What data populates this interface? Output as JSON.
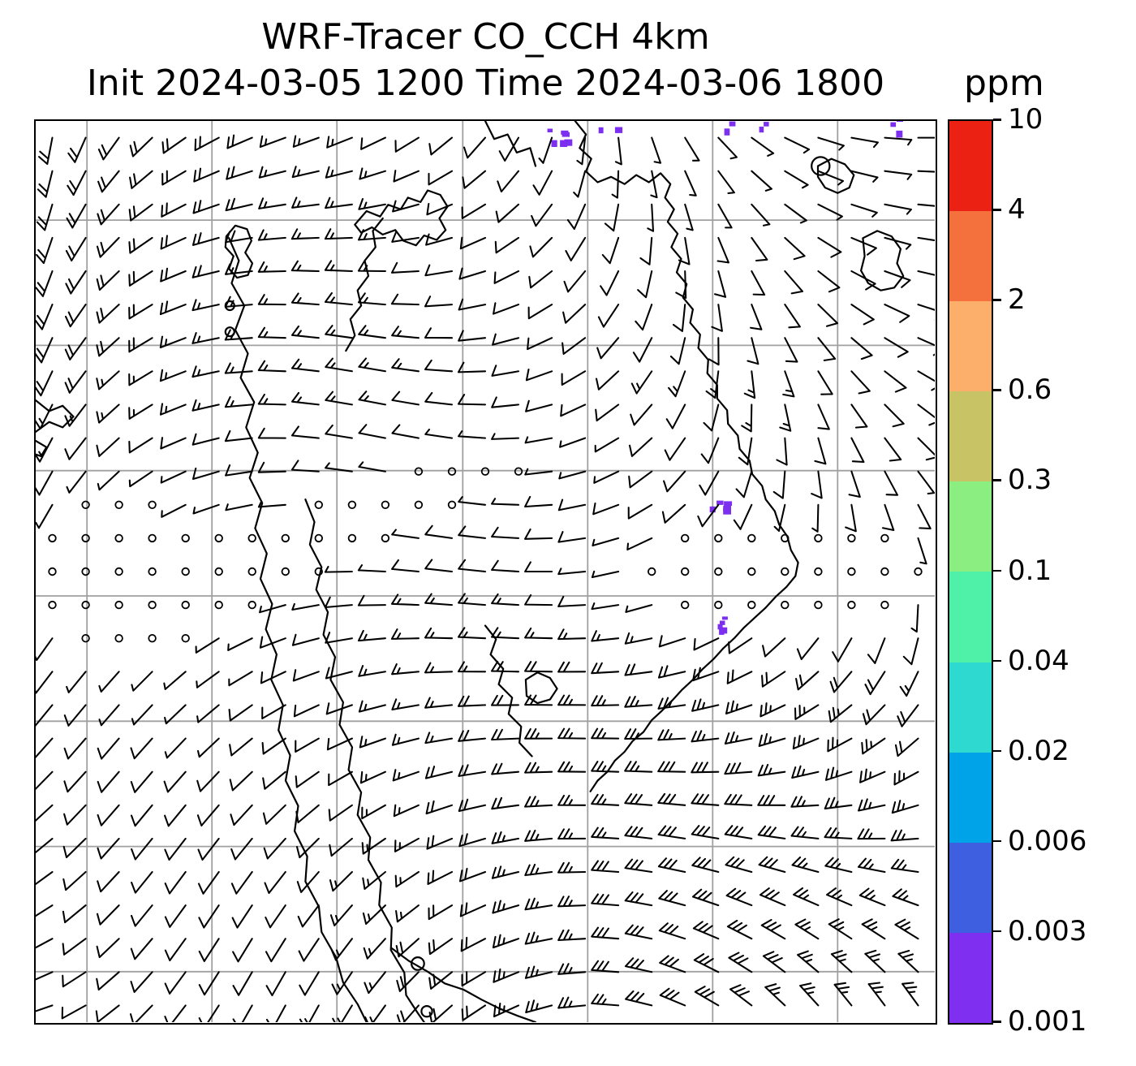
{
  "figure": {
    "title": "WRF-Tracer CO_CCH 4km",
    "subtitle": "Init 2024-03-05 1200 Time 2024-03-06 1800",
    "colorbar_units": "ppm"
  },
  "chart_data": {
    "type": "map_wind_barbs",
    "title": "WRF-Tracer CO_CCH 4km",
    "subtitle": "Init 2024-03-05 1200 Time 2024-03-06 1800",
    "model": "WRF-Tracer",
    "variable": "CO_CCH tracer concentration",
    "resolution": "4km",
    "init_time": "2024-03-05 1200",
    "valid_time": "2024-03-06 1800",
    "units": "ppm",
    "grid": true,
    "legend_position": "right colorbar",
    "colorbar": {
      "orientation": "vertical",
      "side": "right",
      "units_label": "ppm",
      "scale": "discrete logarithmic-style levels",
      "tick_labels_top_to_bottom": [
        "10",
        "4",
        "2",
        "0.6",
        "0.3",
        "0.1",
        "0.04",
        "0.02",
        "0.006",
        "0.003",
        "0.001"
      ],
      "segments_top_to_bottom": [
        {
          "from": 4,
          "to": 10,
          "color": "#eb2113"
        },
        {
          "from": 2,
          "to": 4,
          "color": "#f4703d"
        },
        {
          "from": 0.6,
          "to": 2,
          "color": "#fbaf6b"
        },
        {
          "from": 0.3,
          "to": 0.6,
          "color": "#c8c466"
        },
        {
          "from": 0.1,
          "to": 0.3,
          "color": "#8aee80"
        },
        {
          "from": 0.04,
          "to": 0.1,
          "color": "#4ff0a8"
        },
        {
          "from": 0.02,
          "to": 0.04,
          "color": "#2ed9cf"
        },
        {
          "from": 0.006,
          "to": 0.02,
          "color": "#00a3e8"
        },
        {
          "from": 0.003,
          "to": 0.006,
          "color": "#3f5fe1"
        },
        {
          "from": 0.001,
          "to": 0.003,
          "color": "#7e2ff0"
        }
      ]
    },
    "map": {
      "region": "Mainland Southeast Asia / Indochina with coastlines",
      "grid_color": "#a0a0a0",
      "grid_x": [
        0.057,
        0.196,
        0.335,
        0.475,
        0.614,
        0.753,
        0.892
      ],
      "grid_y": [
        0.11,
        0.249,
        0.388,
        0.527,
        0.666,
        0.805,
        0.944
      ],
      "coastline_color": "#000000",
      "coastlines": [
        "0.215,0.130 0.226,0.155 0.218,0.180 0.232,0.205 0.222,0.232 0.236,0.258 0.228,0.285 0.243,0.312 0.234,0.340 0.247,0.368 0.238,0.396 0.252,0.424 0.244,0.452 0.257,0.480 0.250,0.508 0.263,0.536 0.256,0.564 0.268,0.592 0.262,0.620 0.275,0.648 0.270,0.676 0.283,0.704 0.278,0.732 0.292,0.760 0.288,0.788 0.302,0.816 0.300,0.844 0.315,0.872 0.318,0.900 0.334,0.928 0.342,0.956 0.358,0.980 0.368,1.000",
        "0.300,0.420 0.310,0.445 0.305,0.470 0.318,0.495 0.312,0.520 0.325,0.545 0.320,0.570 0.333,0.595 0.328,0.620 0.342,0.645 0.338,0.670 0.352,0.695 0.348,0.720 0.362,0.745 0.358,0.770 0.372,0.795 0.370,0.820 0.384,0.845 0.382,0.870 0.396,0.895 0.395,0.920 0.410,0.945 0.412,0.970 0.425,0.990 0.432,1.000",
        "0.396,0.918 0.415,0.932 0.436,0.944 0.455,0.957 0.476,0.964 0.496,0.975 0.516,0.985 0.536,0.993 0.556,1.000",
        "0.212,0.128 0.222,0.116 0.235,0.120 0.240,0.133 0.233,0.146 0.241,0.158 0.236,0.171 0.224,0.174 0.215,0.164 0.220,0.150 0.211,0.140 0.212,0.128",
        "0.355,0.115 0.368,0.100 0.383,0.106 0.392,0.093 0.406,0.098 0.414,0.085 0.428,0.090 0.436,0.077 0.450,0.082 0.458,0.095 0.449,0.108 0.456,0.121 0.446,0.132 0.432,0.127 0.423,0.138 0.409,0.133 0.400,0.121 0.386,0.126 0.374,0.118 0.362,0.124 0.355,0.115",
        "0.345,0.255 0.355,0.238 0.350,0.220 0.362,0.205 0.358,0.188 0.370,0.172 0.366,0.155 0.378,0.140 0.375,0.122 0.386,0.108",
        "0.600,0.000 0.612,0.015 0.605,0.030 0.618,0.042 0.612,0.056 0.625,0.068 0.640,0.062 0.655,0.070 0.668,0.060 0.682,0.068 0.695,0.058 0.706,0.070 0.700,0.085 0.710,0.098 0.703,0.112 0.714,0.125 0.707,0.140 0.718,0.153 0.713,0.168 0.724,0.181 0.720,0.196 0.731,0.209 0.728,0.224 0.739,0.237 0.737,0.252 0.748,0.265 0.747,0.280 0.758,0.293 0.758,0.308 0.769,0.321 0.770,0.336 0.781,0.349 0.783,0.364 0.794,0.377 0.797,0.392 0.808,0.405 0.812,0.420 0.822,0.433 0.827,0.448 0.836,0.461 0.840,0.476 0.848,0.490 0.845,0.505 0.835,0.517 0.823,0.528 0.812,0.540 0.800,0.551 0.788,0.562 0.777,0.574 0.765,0.585 0.754,0.597 0.742,0.608 0.731,0.620 0.719,0.631 0.708,0.643 0.697,0.654 0.685,0.665 0.676,0.678 0.664,0.688 0.655,0.700 0.644,0.710 0.636,0.722 0.625,0.732 0.617,0.744",
        "0.870,0.050 0.885,0.042 0.900,0.048 0.910,0.060 0.905,0.074 0.892,0.080 0.878,0.074 0.870,0.062 0.870,0.050",
        "0.920,0.130 0.936,0.122 0.952,0.128 0.962,0.142 0.958,0.158 0.965,0.172 0.955,0.185 0.940,0.188 0.926,0.180 0.918,0.166 0.922,0.150 0.920,0.130",
        "0.000,0.310 0.015,0.322 0.030,0.316 0.042,0.328 0.030,0.340 0.015,0.334 0.000,0.345",
        "0.000,0.355 0.012,0.362 0.006,0.372 0.000,0.370",
        "0.500,0.560 0.512,0.575 0.506,0.592 0.520,0.608 0.515,0.625 0.530,0.640 0.526,0.658 0.540,0.672 0.538,0.690 0.552,0.705",
        "0.545,0.620 0.558,0.612 0.572,0.618 0.580,0.630 0.572,0.642 0.558,0.646 0.546,0.638 0.545,0.620",
        "0.500,0.000 0.510,0.020 0.525,0.015 0.535,0.035 0.550,0.030 0.556,0.050"
      ],
      "islands": [
        {
          "x": 0.425,
          "y": 0.935,
          "r": 0.007
        },
        {
          "x": 0.435,
          "y": 0.988,
          "r": 0.006
        },
        {
          "x": 0.873,
          "y": 0.05,
          "r": 0.01
        },
        {
          "x": 0.216,
          "y": 0.205,
          "r": 0.005
        },
        {
          "x": 0.216,
          "y": 0.234,
          "r": 0.005
        }
      ],
      "patch_color": "#7d2ff0",
      "patch_meaning": "CO_CCH tracer fill at lowest contour levels (~0.001-0.003 ppm)",
      "patches": [
        {
          "x": 0.575,
          "y": 0.015,
          "n": 6
        },
        {
          "x": 0.635,
          "y": 0.004,
          "n": 3
        },
        {
          "x": 0.77,
          "y": 0.002,
          "n": 4
        },
        {
          "x": 0.815,
          "y": 0.004,
          "n": 2
        },
        {
          "x": 0.955,
          "y": 0.004,
          "n": 3
        },
        {
          "x": 0.752,
          "y": 0.425,
          "n": 5
        },
        {
          "x": 0.766,
          "y": 0.558,
          "n": 5
        }
      ]
    },
    "wind_barbs": {
      "style": "dense black meteorological wind barbs on regular grid",
      "cols": 27,
      "rows": 27,
      "speed_range_knots": [
        0,
        38
      ],
      "calm_symbol": "open circle",
      "calm_regions": "wavy band of calm circles across mid-domain: left block, center cluster, and center-right band",
      "flow_summary": "variable light-to-moderate flow in north, calm band mid-domain, stronger organized flow across southern third"
    }
  }
}
